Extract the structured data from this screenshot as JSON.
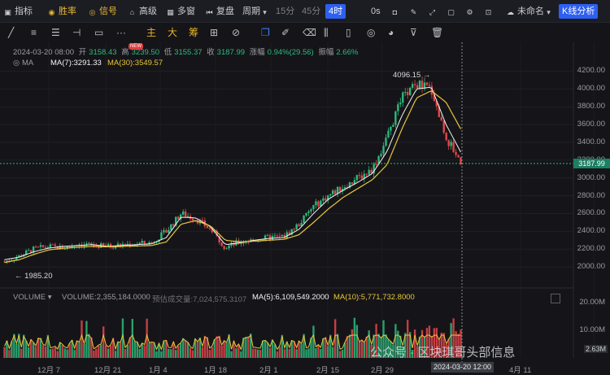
{
  "topbar": {
    "items": [
      {
        "label": "指标",
        "icon": "indicator-icon"
      },
      {
        "label": "胜率",
        "icon": "winrate-icon"
      },
      {
        "label": "信号",
        "icon": "signal-icon"
      },
      {
        "label": "高级",
        "icon": "advanced-icon"
      },
      {
        "label": "多窗",
        "icon": "multiwindow-icon"
      },
      {
        "label": "复盘",
        "icon": "replay-icon"
      },
      {
        "label": "周期",
        "icon": "chevron-down-icon"
      }
    ],
    "periods": [
      "15分",
      "45分",
      "4时"
    ],
    "active_period": "4时",
    "time_label": "0s",
    "workspace": "未命名",
    "analysis_button": "K线分析"
  },
  "drawing_tools": {
    "text_tools": [
      "主",
      "大",
      "筹"
    ],
    "new_badge": "NEW"
  },
  "info": {
    "datetime": "2024-03-20 08:00",
    "open_label": "开",
    "open": "3158.43",
    "high_label": "高",
    "high": "3239.50",
    "low_label": "低",
    "low": "3155.37",
    "close_label": "收",
    "close": "3187.99",
    "change_label": "涨幅",
    "change": "0.94%(29.56)",
    "amp_label": "振幅",
    "amp": "2.66%"
  },
  "ma": {
    "name": "MA",
    "ma7": "MA(7):3291.33",
    "ma30": "MA(30):3549.57"
  },
  "volume": {
    "name": "VOLUME",
    "vol": "VOLUME:2,355,184.0000",
    "est": "预估成交量:7,024,575.3107",
    "ma5": "MA(5):6,109,549.2000",
    "ma10": "MA(10):5,771,732.8000",
    "axis": [
      "20.00M",
      "10.00M"
    ],
    "badge": "2.63M"
  },
  "price_axis": [
    "4200.00",
    "4000.00",
    "3800.00",
    "3600.00",
    "3400.00",
    "3200.00",
    "3000.00",
    "2800.00",
    "2600.00",
    "2400.00",
    "2200.00",
    "2000.00"
  ],
  "current_price": "3187.99",
  "peak_label": "4096.15 →",
  "low_label": "← 1985.20",
  "x_axis": [
    "12月 7",
    "12月 21",
    "1月 4",
    "1月 18",
    "2月 1",
    "2月 15",
    "2月 29",
    "4月 11",
    "4月 2"
  ],
  "crosshair_time": "2024-03-20 12:00",
  "watermark": "公众号 · 区块琪哥头部信息",
  "colors": {
    "up": "#2fb97d",
    "down": "#e6454b",
    "ma7": "#f3f3f3",
    "ma30": "#e9c53a",
    "accent": "#2d5ff2"
  },
  "chart_data": {
    "type": "candlestick",
    "ylim": [
      1900,
      4250
    ],
    "series": [
      {
        "name": "MA(7)",
        "values": [
          2080,
          2110,
          2170,
          2210,
          2230,
          2240,
          2250,
          2230,
          2240,
          2250,
          2260,
          2330,
          2560,
          2550,
          2450,
          2250,
          2270,
          2300,
          2320,
          2330,
          2420,
          2600,
          2760,
          2860,
          2950,
          3050,
          3300,
          3700,
          4000,
          4020,
          3600,
          3290
        ]
      },
      {
        "name": "MA(30)",
        "values": [
          2050,
          2080,
          2140,
          2190,
          2210,
          2220,
          2230,
          2225,
          2230,
          2235,
          2240,
          2280,
          2480,
          2520,
          2460,
          2300,
          2280,
          2290,
          2300,
          2310,
          2360,
          2500,
          2650,
          2780,
          2880,
          2980,
          3150,
          3550,
          3900,
          3980,
          3850,
          3550
        ]
      }
    ],
    "closes": [
      2060,
      2120,
      2200,
      2230,
      2210,
      2260,
      2240,
      2230,
      2250,
      2260,
      2270,
      2400,
      2600,
      2540,
      2420,
      2220,
      2280,
      2300,
      2330,
      2340,
      2480,
      2680,
      2800,
      2900,
      3000,
      3100,
      3450,
      3900,
      4050,
      4000,
      3450,
      3188
    ],
    "volume_axis": [
      "20.00M",
      "10.00M"
    ]
  }
}
